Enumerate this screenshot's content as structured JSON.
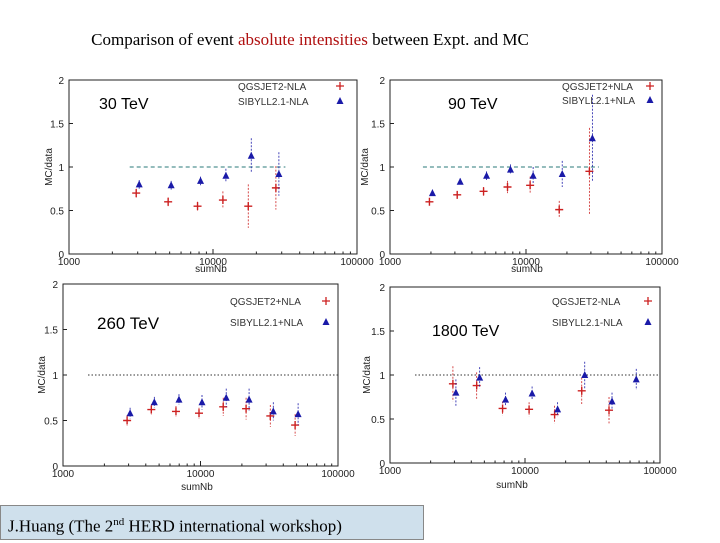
{
  "slide": {
    "title_pre": "Comparison of event ",
    "title_highlight": "absolute intensities",
    "title_post": " between Expt. and MC",
    "highlight_color": "#b01010",
    "footer_pre": "J.Huang (The  2",
    "footer_sup": "nd",
    "footer_post": "  HERD international workshop)"
  },
  "legend_labels": [
    "QGSJET2+NLA",
    "SIBYLL2.1+NLA"
  ],
  "colors": {
    "qgsjet": "#cc2020",
    "sibyll": "#1a1aa8",
    "reference": "#2a7a7a"
  },
  "chart_data": [
    {
      "type": "scatter",
      "label": "30 TeV",
      "xlabel": "sumNb",
      "ylabel": "MC/data",
      "xlim": [
        1000,
        100000
      ],
      "ylim": [
        0,
        2
      ],
      "xscale": "log",
      "x_tick_labels": [
        "1000",
        "10000",
        "100000"
      ],
      "y_tick_labels": [
        "0",
        "0.5",
        "1",
        "1.5",
        "2"
      ],
      "legend_position": "top-right",
      "reference_y": 1.0,
      "series": [
        {
          "name": "QGSJET2-NLA",
          "x": [
            3000,
            5000,
            8000,
            12000,
            18000,
            28000
          ],
          "y": [
            0.7,
            0.6,
            0.55,
            0.62,
            0.55,
            0.76
          ],
          "yerr": [
            0.05,
            0.05,
            0.05,
            0.1,
            0.25,
            0.25
          ]
        },
        {
          "name": "SIBYLL2.1-NLA",
          "x": [
            3000,
            5000,
            8000,
            12000,
            18000,
            28000
          ],
          "y": [
            0.8,
            0.79,
            0.84,
            0.9,
            1.13,
            0.92
          ],
          "yerr": [
            0.05,
            0.05,
            0.05,
            0.08,
            0.2,
            0.25
          ]
        }
      ]
    },
    {
      "type": "scatter",
      "label": "90 TeV",
      "xlabel": "sumNb",
      "ylabel": "MC/data",
      "xlim": [
        1000,
        100000
      ],
      "ylim": [
        0,
        2
      ],
      "xscale": "log",
      "x_tick_labels": [
        "1000",
        "10000",
        "100000"
      ],
      "y_tick_labels": [
        "0",
        "0.5",
        "1",
        "1.5",
        "2"
      ],
      "legend_position": "top-right",
      "reference_y": 1.0,
      "series": [
        {
          "name": "QGSJET2+NLA",
          "x": [
            2000,
            3200,
            5000,
            7500,
            11000,
            18000,
            30000
          ],
          "y": [
            0.6,
            0.68,
            0.72,
            0.77,
            0.79,
            0.51,
            0.95
          ],
          "yerr": [
            0.04,
            0.04,
            0.05,
            0.07,
            0.1,
            0.1,
            0.5
          ]
        },
        {
          "name": "SIBYLL2.1+NLA",
          "x": [
            2000,
            3200,
            5000,
            7500,
            11000,
            18000,
            30000
          ],
          "y": [
            0.7,
            0.83,
            0.9,
            0.97,
            0.9,
            0.92,
            1.33
          ],
          "yerr": [
            0.04,
            0.04,
            0.05,
            0.06,
            0.1,
            0.15,
            0.5
          ]
        }
      ]
    },
    {
      "type": "scatter",
      "label": "260 TeV",
      "xlabel": "sumNb",
      "ylabel": "MC/data",
      "xlim": [
        1000,
        100000
      ],
      "ylim": [
        0,
        2
      ],
      "xscale": "log",
      "x_tick_labels": [
        "1000",
        "10000",
        "100000"
      ],
      "y_tick_labels": [
        "0",
        "0.5",
        "1",
        "1.5",
        "2"
      ],
      "legend_position": "top-right",
      "reference_y": 1.0,
      "series": [
        {
          "name": "QGSJET2+NLA",
          "x": [
            3000,
            4500,
            6800,
            10000,
            15000,
            22000,
            33000,
            50000
          ],
          "y": [
            0.5,
            0.62,
            0.6,
            0.58,
            0.65,
            0.63,
            0.55,
            0.45
          ],
          "yerr": [
            0.06,
            0.06,
            0.06,
            0.06,
            0.1,
            0.12,
            0.12,
            0.12
          ]
        },
        {
          "name": "SIBYLL2.1+NLA",
          "x": [
            3000,
            4500,
            6800,
            10000,
            15000,
            22000,
            33000,
            50000
          ],
          "y": [
            0.58,
            0.7,
            0.73,
            0.7,
            0.75,
            0.73,
            0.6,
            0.57
          ],
          "yerr": [
            0.06,
            0.06,
            0.06,
            0.08,
            0.1,
            0.12,
            0.1,
            0.12
          ]
        }
      ]
    },
    {
      "type": "scatter",
      "label": "1800 TeV",
      "xlabel": "sumNb",
      "ylabel": "MC/data",
      "xlim": [
        1000,
        100000
      ],
      "ylim": [
        0,
        2
      ],
      "xscale": "log",
      "x_tick_labels": [
        "1000",
        "10000",
        "100000"
      ],
      "y_tick_labels": [
        "0",
        "0.5",
        "1",
        "1.5",
        "2"
      ],
      "legend_position": "top-right",
      "reference_y": 1.0,
      "series": [
        {
          "name": "QGSJET2-NLA",
          "x": [
            3000,
            4500,
            7000,
            11000,
            17000,
            27000,
            43000
          ],
          "y": [
            0.9,
            0.88,
            0.62,
            0.61,
            0.55,
            0.82,
            0.6
          ],
          "yerr": [
            0.2,
            0.15,
            0.08,
            0.08,
            0.1,
            0.15,
            0.15
          ]
        },
        {
          "name": "SIBYLL2.1-NLA",
          "x": [
            3000,
            4500,
            7000,
            11000,
            17000,
            27000,
            43000,
            65000
          ],
          "y": [
            0.8,
            0.97,
            0.72,
            0.79,
            0.61,
            1.0,
            0.7,
            0.95
          ],
          "yerr": [
            0.15,
            0.12,
            0.08,
            0.08,
            0.08,
            0.15,
            0.1,
            0.12
          ]
        }
      ]
    }
  ]
}
